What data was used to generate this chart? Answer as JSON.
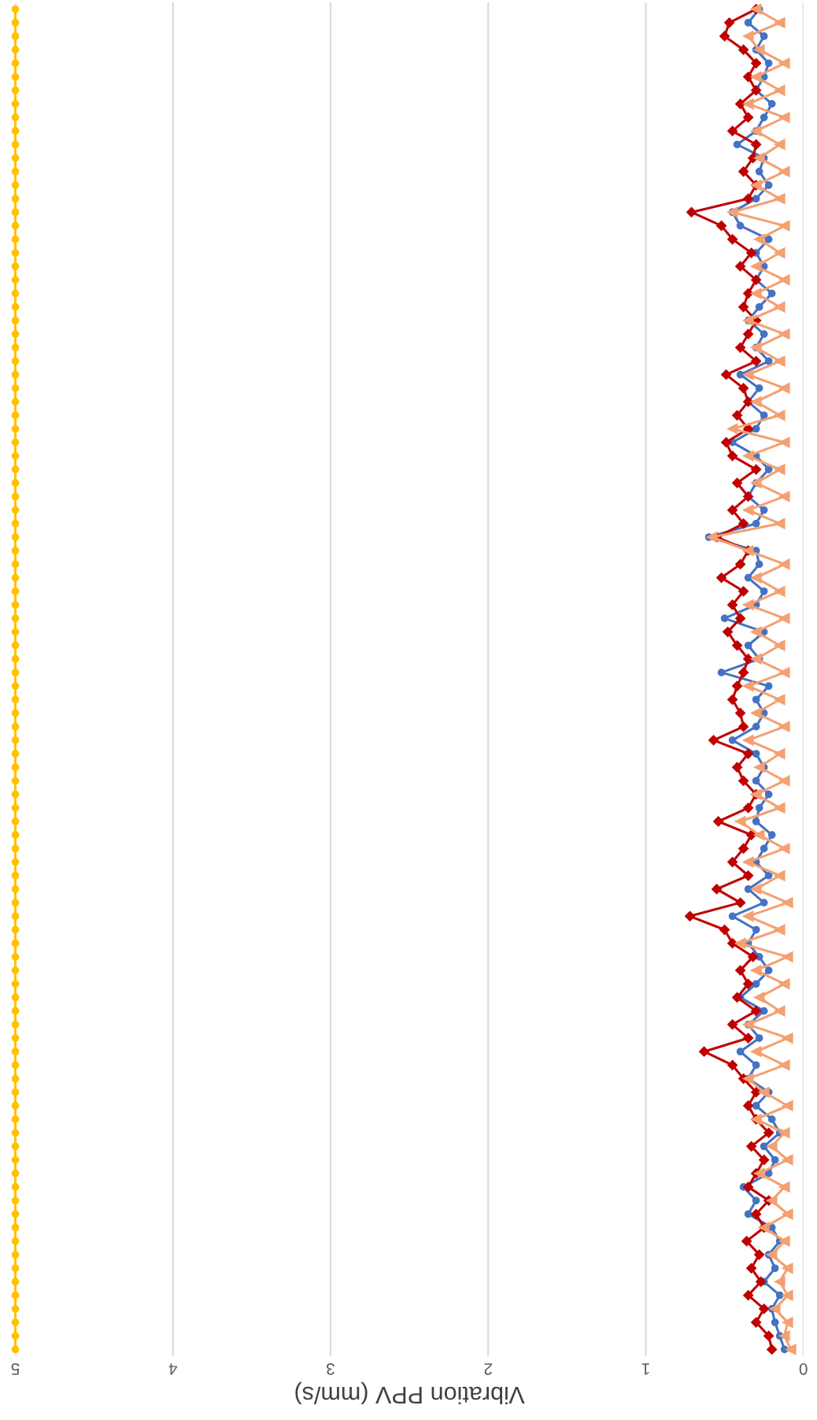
{
  "chart_data": {
    "type": "line",
    "orientation": "horizontal",
    "xlabel": "Vibration PPV (mm/s)",
    "categories": [
      null,
      null,
      null,
      null,
      null,
      null,
      null,
      null,
      null,
      null,
      null,
      null,
      null,
      null,
      null,
      null,
      null,
      null,
      null,
      null,
      null,
      null,
      null,
      null,
      null,
      null,
      null,
      null,
      null,
      null,
      null,
      null,
      null,
      null,
      null,
      null,
      null,
      null,
      null,
      null,
      null,
      null,
      null,
      null,
      null,
      null,
      null,
      null,
      null,
      null,
      null,
      null,
      null,
      null,
      null,
      null,
      null,
      null,
      null,
      null,
      null,
      null,
      null,
      null,
      null,
      null,
      null,
      null,
      null,
      null,
      null,
      null,
      null,
      null,
      null,
      null,
      null,
      null,
      null,
      null,
      null,
      null,
      null,
      null,
      null,
      null,
      null,
      null,
      null,
      null,
      null,
      null,
      null,
      null,
      null,
      null,
      null,
      null,
      null,
      null
    ],
    "xlim": [
      5,
      0
    ],
    "xticks": [
      5,
      4,
      3,
      2,
      1,
      0
    ],
    "grid": "x",
    "tick_labels": "x",
    "series": [
      {
        "color": "#ffc000",
        "marker": "circle",
        "values": [
          5,
          5,
          5,
          5,
          5,
          5,
          5,
          5,
          5,
          5,
          5,
          5,
          5,
          5,
          5,
          5,
          5,
          5,
          5,
          5,
          5,
          5,
          5,
          5,
          5,
          5,
          5,
          5,
          5,
          5,
          5,
          5,
          5,
          5,
          5,
          5,
          5,
          5,
          5,
          5,
          5,
          5,
          5,
          5,
          5,
          5,
          5,
          5,
          5,
          5,
          5,
          5,
          5,
          5,
          5,
          5,
          5,
          5,
          5,
          5,
          5,
          5,
          5,
          5,
          5,
          5,
          5,
          5,
          5,
          5,
          5,
          5,
          5,
          5,
          5,
          5,
          5,
          5,
          5,
          5,
          5,
          5,
          5,
          5,
          5,
          5,
          5,
          5,
          5,
          5,
          5,
          5,
          5,
          5,
          5,
          5,
          5,
          5,
          5,
          5
        ]
      },
      {
        "color": "#4472c4",
        "marker": "circle",
        "values": [
          0.28,
          0.35,
          0.25,
          0.3,
          0.22,
          0.25,
          0.3,
          0.2,
          0.25,
          0.3,
          0.42,
          0.25,
          0.28,
          0.22,
          0.3,
          0.45,
          0.4,
          0.22,
          0.3,
          0.25,
          0.3,
          0.2,
          0.28,
          0.35,
          0.25,
          0.3,
          0.22,
          0.4,
          0.28,
          0.35,
          0.25,
          0.3,
          0.45,
          0.3,
          0.22,
          0.3,
          0.35,
          0.25,
          0.3,
          0.6,
          0.3,
          0.28,
          0.35,
          0.25,
          0.3,
          0.5,
          0.25,
          0.35,
          0.28,
          0.52,
          0.22,
          0.3,
          0.25,
          0.3,
          0.45,
          0.3,
          0.25,
          0.3,
          0.22,
          0.28,
          0.3,
          0.2,
          0.25,
          0.3,
          0.22,
          0.35,
          0.25,
          0.45,
          0.3,
          0.35,
          0.28,
          0.22,
          0.3,
          0.4,
          0.25,
          0.35,
          0.28,
          0.4,
          0.3,
          0.35,
          0.22,
          0.3,
          0.2,
          0.15,
          0.25,
          0.18,
          0.22,
          0.38,
          0.3,
          0.35,
          0.2,
          0.15,
          0.22,
          0.18,
          0.25,
          0.15,
          0.2,
          0.18,
          0.15,
          0.12
        ]
      },
      {
        "color": "#c00000",
        "marker": "diamond",
        "values": [
          0.3,
          0.47,
          0.5,
          0.38,
          0.3,
          0.35,
          0.3,
          0.4,
          0.35,
          0.45,
          0.3,
          0.32,
          0.38,
          0.3,
          0.35,
          0.71,
          0.52,
          0.45,
          0.33,
          0.4,
          0.3,
          0.35,
          0.38,
          0.3,
          0.35,
          0.4,
          0.3,
          0.49,
          0.38,
          0.35,
          0.42,
          0.35,
          0.49,
          0.45,
          0.3,
          0.42,
          0.35,
          0.45,
          0.38,
          0.55,
          0.35,
          0.4,
          0.52,
          0.38,
          0.45,
          0.4,
          0.48,
          0.42,
          0.35,
          0.38,
          0.42,
          0.45,
          0.4,
          0.38,
          0.57,
          0.35,
          0.42,
          0.38,
          0.3,
          0.35,
          0.54,
          0.33,
          0.38,
          0.45,
          0.35,
          0.55,
          0.4,
          0.72,
          0.5,
          0.45,
          0.32,
          0.4,
          0.35,
          0.42,
          0.3,
          0.45,
          0.35,
          0.63,
          0.45,
          0.38,
          0.3,
          0.35,
          0.3,
          0.22,
          0.33,
          0.25,
          0.3,
          0.35,
          0.22,
          0.3,
          0.25,
          0.36,
          0.28,
          0.33,
          0.27,
          0.35,
          0.25,
          0.3,
          0.22,
          0.2
        ]
      },
      {
        "color": "#f4a070",
        "marker": "triangle",
        "values": [
          0.3,
          0.15,
          0.35,
          0.28,
          0.12,
          0.3,
          0.15,
          0.35,
          0.12,
          0.3,
          0.15,
          0.28,
          0.12,
          0.3,
          0.15,
          0.45,
          0.12,
          0.28,
          0.15,
          0.3,
          0.12,
          0.3,
          0.15,
          0.35,
          0.12,
          0.3,
          0.15,
          0.35,
          0.12,
          0.3,
          0.15,
          0.45,
          0.12,
          0.35,
          0.15,
          0.3,
          0.12,
          0.35,
          0.15,
          0.58,
          0.35,
          0.12,
          0.3,
          0.15,
          0.35,
          0.12,
          0.3,
          0.15,
          0.3,
          0.12,
          0.35,
          0.15,
          0.3,
          0.12,
          0.35,
          0.15,
          0.28,
          0.12,
          0.3,
          0.15,
          0.4,
          0.28,
          0.12,
          0.35,
          0.15,
          0.3,
          0.1,
          0.35,
          0.15,
          0.4,
          0.1,
          0.3,
          0.12,
          0.28,
          0.15,
          0.35,
          0.1,
          0.3,
          0.12,
          0.35,
          0.25,
          0.1,
          0.3,
          0.12,
          0.2,
          0.1,
          0.28,
          0.12,
          0.2,
          0.1,
          0.25,
          0.12,
          0.2,
          0.1,
          0.15,
          0.1,
          0.18,
          0.1,
          0.12,
          0.08
        ]
      }
    ]
  }
}
